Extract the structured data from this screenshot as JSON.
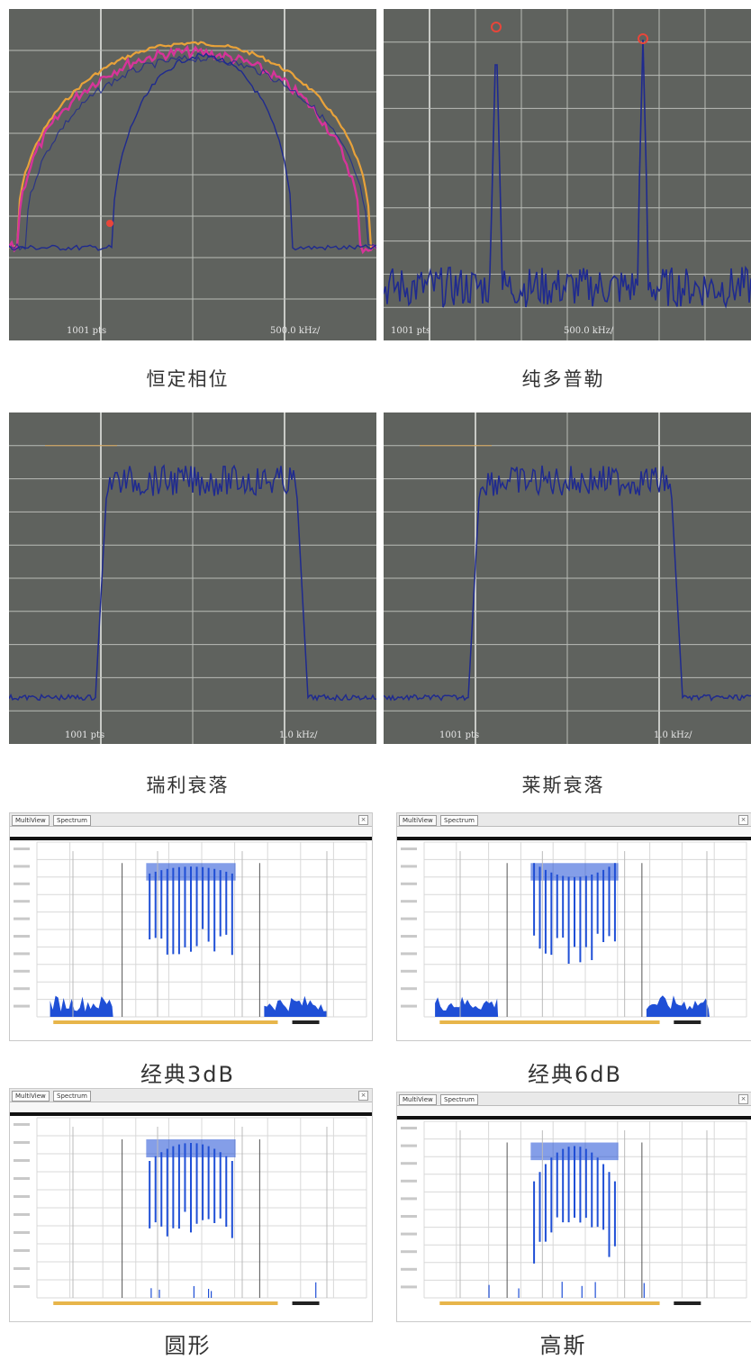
{
  "panels": [
    {
      "caption": "恒定相位",
      "axis_left": "1001 pts",
      "axis_right": "500.0 kHz/"
    },
    {
      "caption": "纯多普勒",
      "axis_left": "1001 pts",
      "axis_right": "500.0 kHz/"
    },
    {
      "caption": "瑞利衰落",
      "axis_left": "1001 pts",
      "axis_right": "1.0 kHz/"
    },
    {
      "caption": "莱斯衰落",
      "axis_left": "1001 pts",
      "axis_right": "1.0 kHz/"
    },
    {
      "caption": "经典3dB",
      "tab_left": "MultiView",
      "tab_right": "Spectrum"
    },
    {
      "caption": "经典6dB",
      "tab_left": "MultiView",
      "tab_right": "Spectrum"
    },
    {
      "caption": "圆形",
      "tab_left": "MultiView",
      "tab_right": "Spectrum"
    },
    {
      "caption": "高斯",
      "tab_left": "MultiView",
      "tab_right": "Spectrum"
    }
  ],
  "colors": {
    "dark_bg": "#5f625e",
    "grid": "#b9bcb7",
    "trace_blue": "#1f2a8f",
    "trace_magenta": "#d6349a",
    "trace_orange": "#e8a23a",
    "marker_red": "#e8463a",
    "light_trace": "#1f4fd6",
    "orange_bar": "#e7b54a"
  },
  "chart_data": [
    {
      "type": "line",
      "panel": "恒定相位",
      "series": [
        {
          "values": [
            0.2,
            0.45,
            0.75,
            0.9,
            0.95,
            0.9,
            0.75,
            0.45,
            0.2
          ]
        }
      ]
    },
    {
      "type": "line",
      "panel": "纯多普勒",
      "series": [
        {
          "values": [
            0.15,
            0.12,
            0.18,
            1.0,
            0.16,
            0.13,
            0.17,
            0.14,
            0.98,
            0.15,
            0.12
          ]
        }
      ]
    },
    {
      "type": "line",
      "panel": "瑞利衰落",
      "series": [
        {
          "values": [
            0.13,
            0.15,
            0.85,
            0.87,
            0.86,
            0.88,
            0.85,
            0.15,
            0.13
          ]
        }
      ]
    },
    {
      "type": "line",
      "panel": "莱斯衰落",
      "series": [
        {
          "values": [
            0.13,
            0.15,
            0.85,
            0.87,
            0.86,
            0.88,
            0.85,
            0.15,
            0.13
          ]
        }
      ]
    },
    {
      "type": "line",
      "panel": "经典3dB",
      "series": [
        {
          "values": [
            0.05,
            0.15,
            0.2,
            0.85,
            0.9,
            0.9,
            0.85,
            0.2,
            0.15,
            0.05
          ]
        }
      ]
    },
    {
      "type": "line",
      "panel": "经典6dB",
      "series": [
        {
          "values": [
            0.05,
            0.15,
            0.2,
            0.86,
            0.8,
            0.8,
            0.86,
            0.2,
            0.15,
            0.05
          ]
        }
      ]
    },
    {
      "type": "line",
      "panel": "圆形",
      "series": [
        {
          "values": [
            0.05,
            0.08,
            0.8,
            0.9,
            0.9,
            0.8,
            0.08,
            0.05
          ]
        }
      ]
    },
    {
      "type": "line",
      "panel": "高斯",
      "series": [
        {
          "values": [
            0.05,
            0.08,
            0.75,
            0.9,
            0.75,
            0.08,
            0.05
          ]
        }
      ]
    }
  ]
}
